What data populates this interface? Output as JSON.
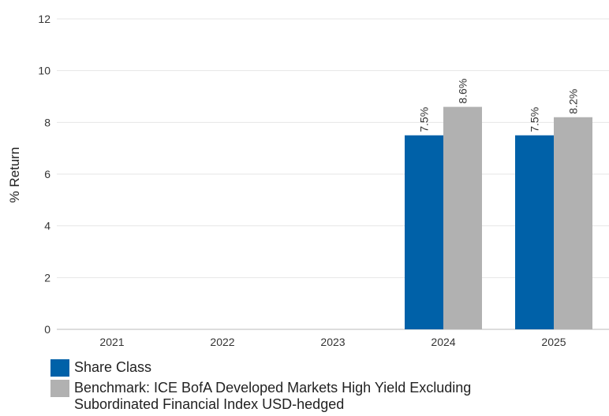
{
  "chart_data": {
    "type": "bar",
    "categories": [
      "2021",
      "2022",
      "2023",
      "2024",
      "2025"
    ],
    "series": [
      {
        "name": "Share Class",
        "color": "#0061a8",
        "values": [
          null,
          null,
          null,
          7.5,
          7.5
        ],
        "labels": [
          null,
          null,
          null,
          "7.5%",
          "7.5%"
        ]
      },
      {
        "name": "Benchmark: ICE BofA Developed Markets High Yield Excluding Subordinated Financial Index USD-hedged",
        "color": "#b1b1b1",
        "values": [
          null,
          null,
          null,
          8.6,
          8.2
        ],
        "labels": [
          null,
          null,
          null,
          "8.6%",
          "8.2%"
        ]
      }
    ],
    "ylabel": "% Return",
    "xlabel": "",
    "title": "",
    "ylim": [
      0,
      12
    ],
    "yticks": [
      "0",
      "2",
      "4",
      "6",
      "8",
      "10",
      "12"
    ],
    "grid": true,
    "legend_position": "bottom-left"
  }
}
